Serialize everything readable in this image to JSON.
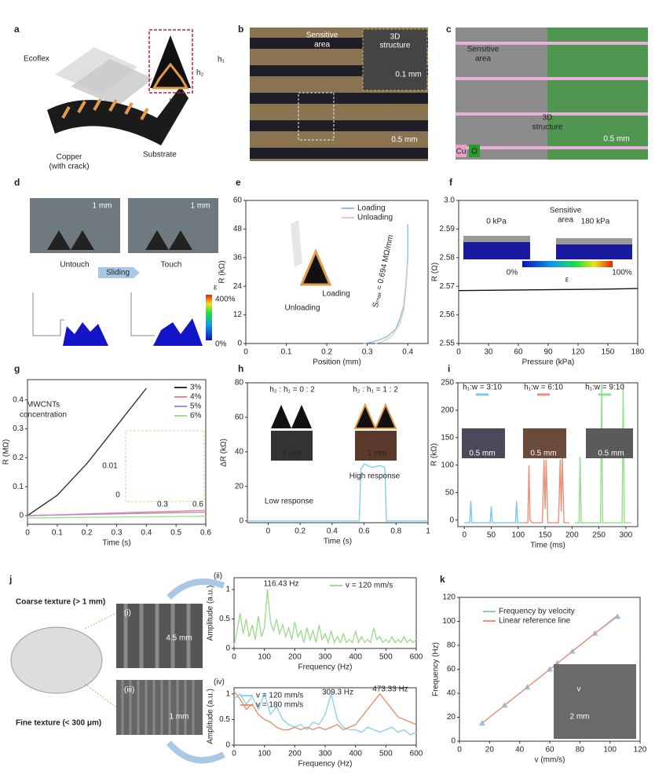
{
  "panels": {
    "a": {
      "label": "a",
      "texts": [
        "Ecoflex",
        "Copper",
        "(with crack)",
        "Substrate",
        "h₁",
        "h₂",
        "w"
      ]
    },
    "b": {
      "label": "b",
      "texts": [
        "Sensitive",
        "area",
        "3D",
        "structure",
        "0.1 mm",
        "0.5 mm"
      ]
    },
    "c": {
      "label": "c",
      "texts": [
        "Sensitive",
        "area",
        "3D",
        "structure",
        "0.5 mm",
        "Cu",
        "O"
      ]
    },
    "d": {
      "label": "d",
      "texts": [
        "1 mm",
        "1 mm",
        "Untouch",
        "Touch",
        "Sliding",
        "400%",
        "0%",
        "ε"
      ]
    },
    "j": {
      "label": "j",
      "texts": [
        "Coarse texture (> 1 mm)",
        "Fine texture (< 300 μm)",
        "(i)",
        "(iii)",
        "4.5 mm",
        "1 mm"
      ]
    }
  },
  "chart_data": [
    {
      "type": "line",
      "label": "e",
      "xlabel": "Position (mm)",
      "ylabel": "R (kΩ)",
      "xlim": [
        0,
        0.45
      ],
      "ylim": [
        0,
        60
      ],
      "xticks": [
        0,
        0.1,
        0.2,
        0.3,
        0.4
      ],
      "yticks": [
        0,
        12,
        24,
        36,
        48,
        60
      ],
      "legend": "upper right",
      "series": [
        {
          "name": "Loading",
          "color": "#7fc6e0",
          "x": [
            0.29,
            0.31,
            0.33,
            0.35,
            0.37,
            0.38,
            0.39,
            0.395,
            0.4,
            0.4
          ],
          "values": [
            0,
            0.5,
            1.5,
            3,
            6,
            10,
            16,
            24,
            36,
            50
          ]
        },
        {
          "name": "Unloading",
          "color": "#f0c4c4",
          "x": [
            0.32,
            0.34,
            0.36,
            0.38,
            0.39,
            0.395,
            0.4
          ],
          "values": [
            0,
            1,
            3,
            8,
            14,
            22,
            34
          ]
        }
      ],
      "annotations": [
        "Sₘₐₓ = 0.694 MΩ/mm",
        "Unloading",
        "Loading"
      ]
    },
    {
      "type": "line",
      "label": "f",
      "xlabel": "Pressure (kPa)",
      "ylabel": "R (Ω)",
      "xlim": [
        0,
        180
      ],
      "ylim": [
        2.55,
        3.0
      ],
      "xticks": [
        0,
        30,
        60,
        90,
        120,
        150,
        180
      ],
      "yticks": [
        2.55,
        2.56,
        2.57,
        2.58,
        2.59,
        {
          "value": 3.0,
          "label": "3.0"
        }
      ],
      "axis_break": true,
      "x": [
        0,
        30,
        60,
        90,
        120,
        150,
        180
      ],
      "values": [
        2.5685,
        2.5686,
        2.5687,
        2.5688,
        2.5689,
        2.569,
        2.5692
      ],
      "color": "#111111",
      "annotations": [
        "0 kPa",
        "Sensitive",
        "area",
        "180 kPa",
        "0%",
        "100%",
        "ε"
      ]
    },
    {
      "type": "line",
      "label": "g",
      "xlabel": "Time (s)",
      "ylabel": "R (MΩ)",
      "xlim": [
        0,
        0.6
      ],
      "ylim": [
        -0.03,
        0.47
      ],
      "xticks": [
        0,
        0.1,
        0.2,
        0.3,
        0.4,
        0.5,
        0.6
      ],
      "yticks": [
        0,
        0.1,
        0.2,
        0.3,
        0.4
      ],
      "legend": "upper right",
      "x": [
        0,
        0.1,
        0.2,
        0.3,
        0.4,
        0.5,
        0.6
      ],
      "series": [
        {
          "name": "3%",
          "color": "#333333",
          "values": [
            0,
            0.07,
            0.18,
            0.31,
            0.44,
            null,
            null
          ]
        },
        {
          "name": "4%",
          "color": "#e88a8a",
          "values": [
            0,
            0.003,
            0.006,
            0.009,
            0.012,
            0.015,
            0.018
          ]
        },
        {
          "name": "5%",
          "color": "#b58ac9",
          "values": [
            0,
            0.002,
            0.004,
            0.006,
            0.008,
            0.01,
            0.012
          ]
        },
        {
          "name": "6%",
          "color": "#9fe08f",
          "values": [
            -0.008,
            -0.007,
            -0.006,
            -0.005,
            -0.004,
            -0.003,
            -0.002
          ]
        }
      ],
      "annotations": [
        "MWCNTs",
        "concentration",
        "0.01",
        "0",
        "0.3",
        "0.6"
      ]
    },
    {
      "type": "line",
      "label": "h",
      "xlabel": "Time (s)",
      "ylabel": "ΔR (kΩ)",
      "xlim": [
        -0.13,
        1
      ],
      "ylim": [
        -1,
        80
      ],
      "xticks": [
        0,
        0.2,
        0.4,
        0.6,
        0.8,
        1
      ],
      "yticks": [
        0,
        20,
        40,
        60,
        80
      ],
      "x": [
        -0.13,
        0.57,
        0.58,
        0.6,
        0.65,
        0.7,
        0.73,
        0.74,
        1
      ],
      "values": [
        0,
        0,
        30,
        33,
        31,
        32,
        31,
        0,
        0
      ],
      "color": "#7fd0e8",
      "annotations": [
        "h₂ : h₁ = 0 : 2",
        "h₂ : h₁ = 1 : 2",
        "1 mm",
        "1 mm",
        "Low response",
        "High response"
      ]
    },
    {
      "type": "line",
      "label": "i",
      "xlabel": "Time (ms)",
      "ylabel": "R (kΩ)",
      "xlim": [
        -12,
        322
      ],
      "ylim": [
        -12,
        250
      ],
      "xticks": [
        0,
        50,
        100,
        150,
        200,
        250,
        300
      ],
      "yticks": [
        0,
        50,
        100,
        150,
        200,
        250
      ],
      "series": [
        {
          "name": "h₁:w = 3:10",
          "color": "#7cc8e8",
          "x": [
            0,
            10,
            12,
            14,
            48,
            50,
            52,
            95,
            97,
            99,
            110
          ],
          "values": [
            -5,
            -5,
            35,
            -5,
            -5,
            25,
            -5,
            -5,
            35,
            -5,
            -5
          ]
        },
        {
          "name": "h₁:w = 6:10",
          "color": "#e8907a",
          "x": [
            110,
            118,
            120,
            122,
            126,
            145,
            148,
            150,
            152,
            155,
            175,
            178,
            180,
            182,
            185,
            195
          ],
          "values": [
            -5,
            -5,
            100,
            0,
            -5,
            -5,
            110,
            20,
            110,
            -5,
            -5,
            110,
            15,
            115,
            -5,
            -5
          ]
        },
        {
          "name": "h₁:w = 9:10",
          "color": "#8ee08a",
          "x": [
            205,
            213,
            215,
            217,
            250,
            253,
            255,
            257,
            290,
            293,
            295,
            297,
            310
          ],
          "values": [
            -5,
            -5,
            115,
            -5,
            -5,
            -5,
            250,
            -5,
            -5,
            -5,
            250,
            -5,
            -5
          ]
        }
      ],
      "annotations": [
        "0.5 mm",
        "0.5 mm",
        "0.5 mm"
      ]
    },
    {
      "type": "line",
      "label": "(ii)",
      "xlabel": "Frequency (Hz)",
      "ylabel": "Amplitude (a.u.)",
      "xlim": [
        0,
        600
      ],
      "ylim": [
        0,
        1.2
      ],
      "xticks": [
        0,
        100,
        200,
        300,
        400,
        500,
        600
      ],
      "yticks": [
        0,
        0.5,
        1
      ],
      "legend": "upper right",
      "x": [
        0,
        10,
        20,
        30,
        40,
        50,
        60,
        70,
        80,
        90,
        100,
        110,
        120,
        130,
        140,
        150,
        160,
        170,
        180,
        190,
        200,
        210,
        220,
        230,
        240,
        250,
        260,
        270,
        280,
        290,
        300,
        310,
        320,
        330,
        340,
        350,
        360,
        370,
        380,
        390,
        400,
        410,
        420,
        430,
        440,
        450,
        460,
        470,
        480,
        490,
        500,
        510,
        520,
        530,
        540,
        550,
        560,
        570,
        580,
        590,
        600
      ],
      "series": [
        {
          "name": "v = 120 mm/s",
          "color": "#9fdc8f",
          "values": [
            0.05,
            0.3,
            0.6,
            0.25,
            0.5,
            0.2,
            0.4,
            0.15,
            0.55,
            0.2,
            0.35,
            1.0,
            0.45,
            0.3,
            0.5,
            0.25,
            0.4,
            0.2,
            0.35,
            0.15,
            0.45,
            0.2,
            0.3,
            0.1,
            0.35,
            0.15,
            0.3,
            0.1,
            0.4,
            0.15,
            0.25,
            0.1,
            0.3,
            0.1,
            0.2,
            0.1,
            0.25,
            0.1,
            0.15,
            0.1,
            0.3,
            0.1,
            0.2,
            0.1,
            0.15,
            0.1,
            0.35,
            0.15,
            0.2,
            0.1,
            0.15,
            0.1,
            0.2,
            0.1,
            0.15,
            0.1,
            0.2,
            0.1,
            0.15,
            0.1,
            0.15
          ]
        }
      ],
      "annotations": [
        "116.43 Hz"
      ]
    },
    {
      "type": "line",
      "label": "(iv)",
      "xlabel": "Frequency (Hz)",
      "ylabel": "Amplitude (a.u.)",
      "xlim": [
        0,
        600
      ],
      "ylim": [
        0,
        1.12
      ],
      "xticks": [
        0,
        100,
        200,
        300,
        400,
        500,
        600
      ],
      "yticks": [
        0,
        0.5,
        1
      ],
      "legend": "upper left",
      "x": [
        0,
        20,
        40,
        60,
        80,
        100,
        120,
        140,
        160,
        180,
        200,
        220,
        240,
        260,
        280,
        300,
        320,
        340,
        360,
        380,
        400,
        420,
        440,
        460,
        480,
        500,
        520,
        540,
        560,
        580,
        600
      ],
      "series": [
        {
          "name": "v = 120 mm/s",
          "color": "#8fd0ea",
          "values": [
            0.9,
            1.0,
            0.8,
            0.95,
            0.7,
            1.0,
            0.6,
            0.75,
            0.5,
            0.4,
            0.35,
            0.4,
            0.3,
            0.45,
            0.4,
            0.6,
            1.0,
            0.5,
            0.35,
            0.3,
            0.3,
            0.25,
            0.35,
            0.3,
            0.25,
            0.3,
            0.35,
            0.25,
            0.3,
            0.2,
            0.25
          ]
        },
        {
          "name": "v = 180 mm/s",
          "color": "#e8906f",
          "values": [
            1.05,
            0.9,
            0.7,
            0.8,
            0.6,
            0.5,
            0.45,
            0.35,
            0.3,
            0.3,
            0.35,
            0.3,
            0.35,
            0.3,
            0.35,
            0.3,
            0.35,
            0.4,
            0.3,
            0.35,
            0.4,
            0.55,
            0.7,
            0.85,
            1.0,
            0.85,
            0.7,
            0.55,
            0.5,
            0.45,
            0.4
          ]
        }
      ],
      "annotations": [
        "309.3 Hz",
        "473.33 Hz"
      ]
    },
    {
      "type": "line",
      "label": "k",
      "xlabel": "v (mm/s)",
      "ylabel": "Frequency (Hz)",
      "xlim": [
        0,
        120
      ],
      "ylim": [
        0,
        120
      ],
      "xticks": [
        0,
        20,
        40,
        60,
        80,
        100,
        120
      ],
      "yticks": [
        0,
        20,
        40,
        60,
        80,
        100,
        120
      ],
      "legend": "upper left",
      "series": [
        {
          "name": "Frequency by velocity",
          "color": "#8fc3e6",
          "marker": "^",
          "x": [
            15,
            30,
            45,
            60,
            65,
            75,
            90,
            105
          ],
          "values": [
            15,
            30,
            45,
            60,
            65,
            75,
            90,
            104
          ]
        },
        {
          "name": "Linear reference line",
          "color": "#e8937a",
          "x": [
            15,
            105
          ],
          "values": [
            15,
            105
          ]
        }
      ],
      "annotations": [
        "v",
        "2 mm"
      ]
    }
  ]
}
